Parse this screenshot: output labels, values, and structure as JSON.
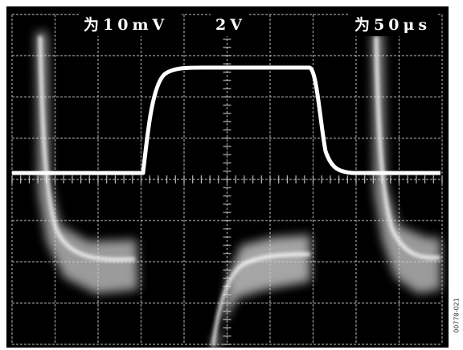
{
  "header": {
    "volts_per_div_1": "为10mV",
    "volts_per_div_2": "2V",
    "time_per_div": "为50μs"
  },
  "figure_id": "00778-021"
}
